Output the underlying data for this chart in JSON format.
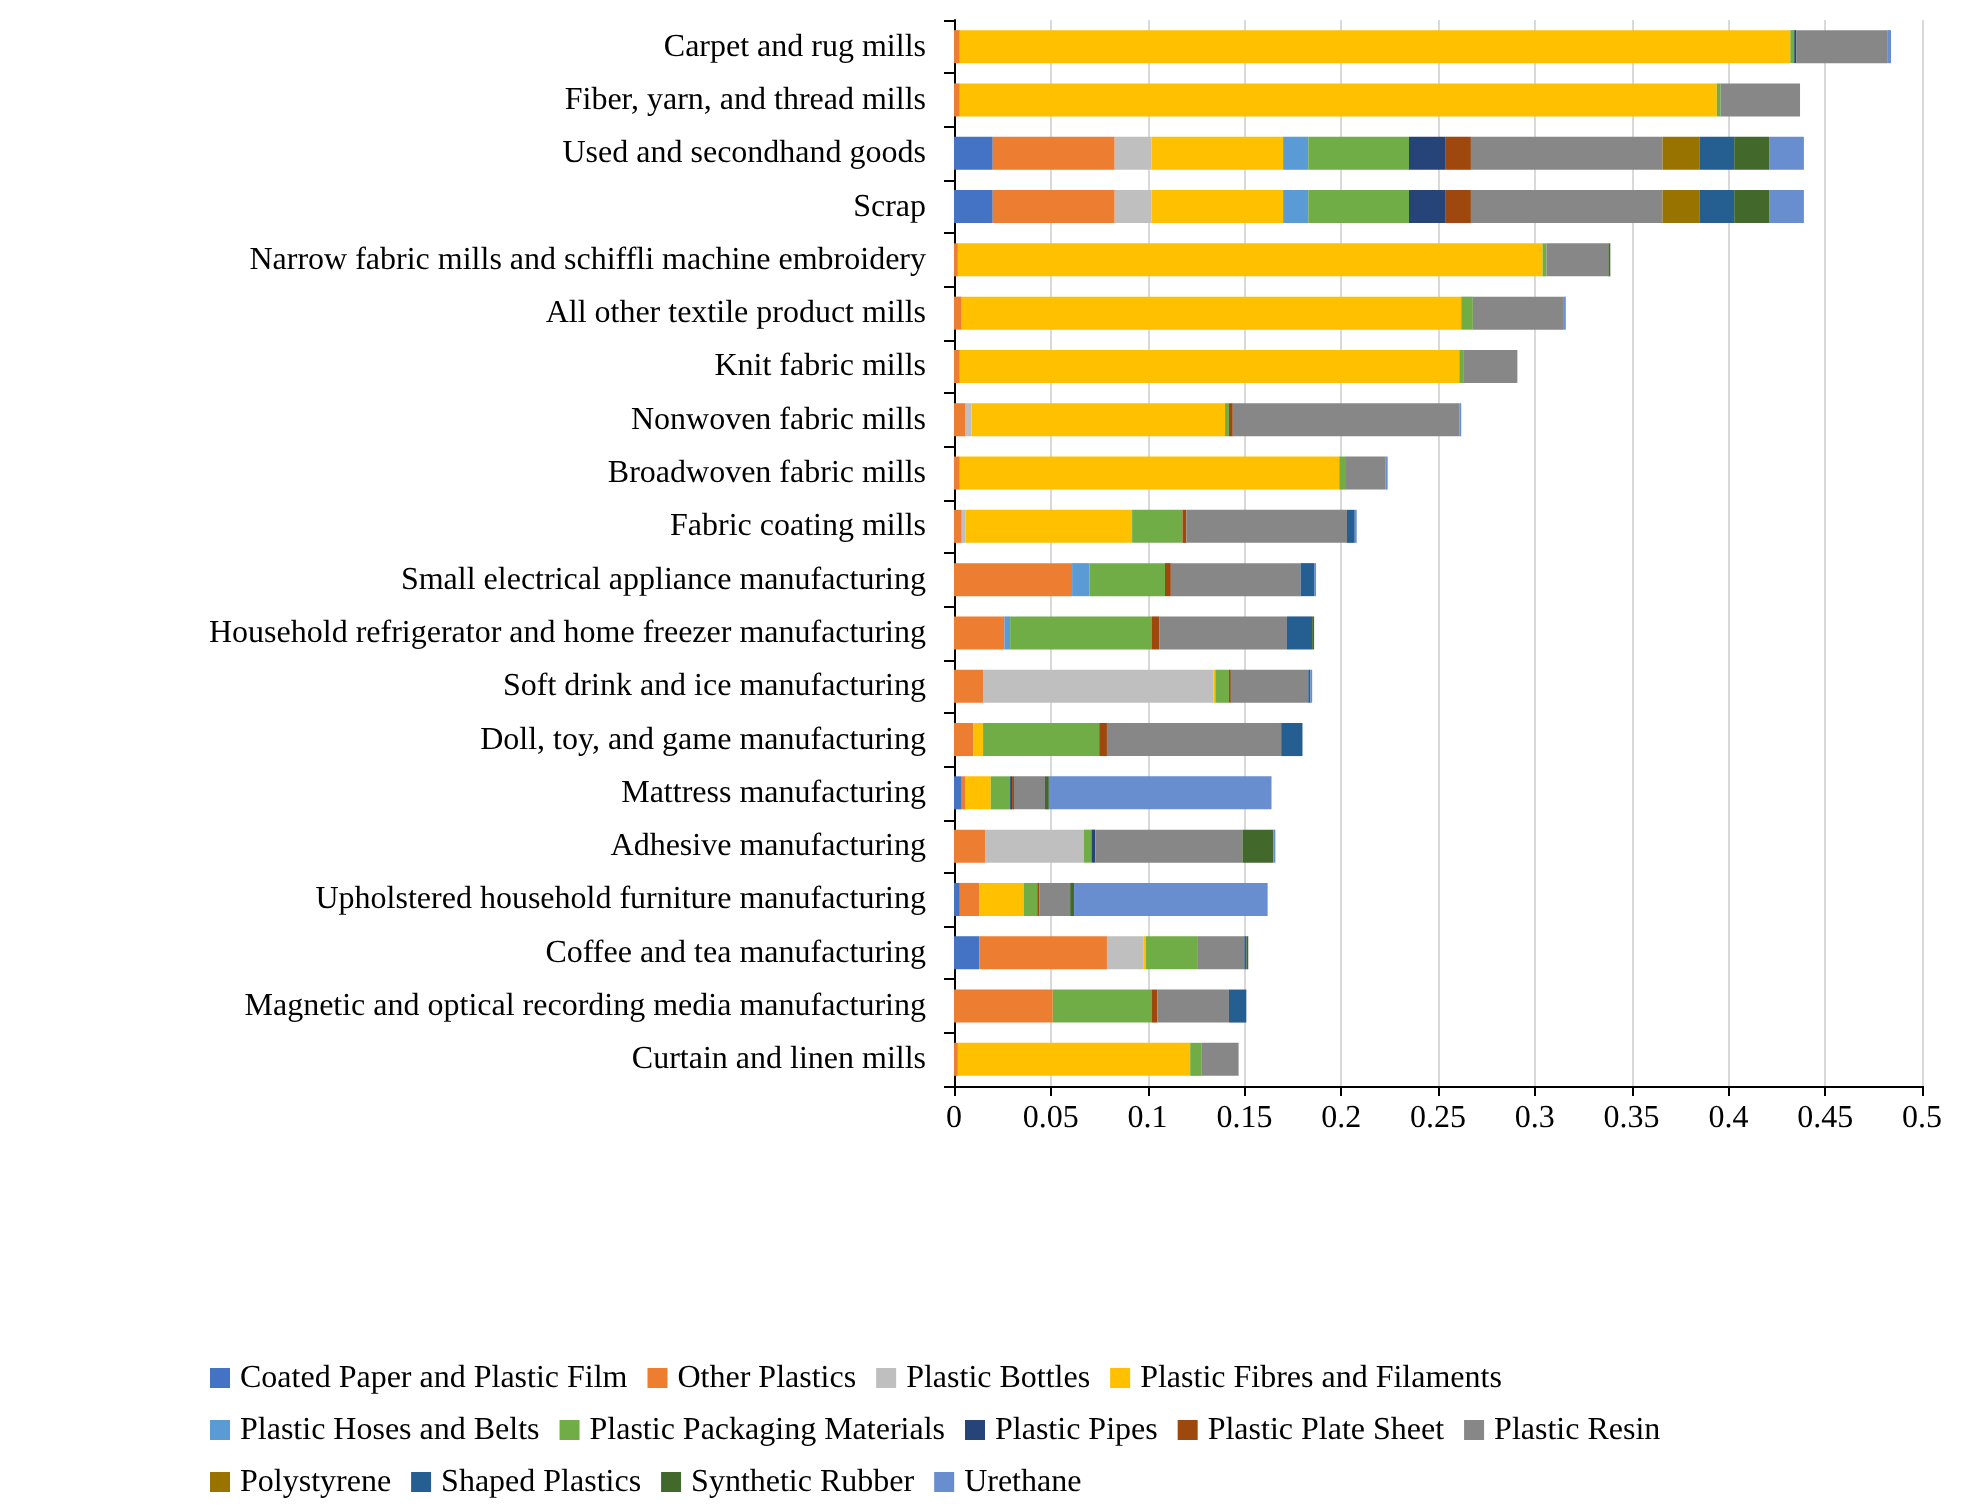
{
  "chart_data": {
    "type": "bar",
    "orientation": "horizontal",
    "stacked": true,
    "grid": "x",
    "legend": "bottom",
    "categories": [
      "Carpet and rug mills",
      "Fiber, yarn, and thread mills",
      "Used and secondhand goods",
      "Scrap",
      "Narrow fabric mills and schiffli machine embroidery",
      "All other textile product mills",
      "Knit fabric mills",
      "Nonwoven fabric mills",
      "Broadwoven fabric mills",
      "Fabric coating mills",
      "Small electrical appliance manufacturing",
      "Household refrigerator and home freezer manufacturing",
      "Soft drink and ice manufacturing",
      "Doll, toy, and game manufacturing",
      "Mattress manufacturing",
      "Adhesive manufacturing",
      "Upholstered household furniture manufacturing",
      "Coffee and tea manufacturing",
      "Magnetic and optical recording media manufacturing",
      "Curtain and linen mills"
    ],
    "xlim": [
      0,
      0.5
    ],
    "xticks": [
      0,
      0.05,
      0.1,
      0.15,
      0.2,
      0.25,
      0.3,
      0.35,
      0.4,
      0.45,
      0.5
    ],
    "series": [
      {
        "name": "Coated Paper and Plastic Film",
        "color": "#4472c4",
        "values": [
          null,
          null,
          0.02,
          0.02,
          null,
          null,
          null,
          null,
          null,
          null,
          null,
          null,
          null,
          null,
          0.004,
          null,
          0.003,
          0.013,
          null,
          null
        ]
      },
      {
        "name": "Other Plastics",
        "color": "#ed7d31",
        "values": [
          0.003,
          0.003,
          0.063,
          0.063,
          0.002,
          0.004,
          0.003,
          0.006,
          0.003,
          0.004,
          0.061,
          0.026,
          0.015,
          0.01,
          0.002,
          0.016,
          0.01,
          0.066,
          0.051,
          0.002
        ]
      },
      {
        "name": "Plastic Bottles",
        "color": "#bfbfbf",
        "values": [
          null,
          null,
          0.019,
          0.019,
          null,
          null,
          null,
          0.003,
          null,
          0.002,
          null,
          null,
          0.119,
          null,
          null,
          0.051,
          null,
          0.019,
          null,
          null
        ]
      },
      {
        "name": "Plastic Fibres and Filaments",
        "color": "#ffc000",
        "values": [
          0.429,
          0.391,
          0.068,
          0.068,
          0.302,
          0.258,
          0.258,
          0.131,
          0.196,
          0.086,
          null,
          null,
          0.001,
          0.005,
          0.013,
          null,
          0.023,
          0.001,
          null,
          0.12
        ]
      },
      {
        "name": "Plastic Hoses and Belts",
        "color": "#5b9bd5",
        "values": [
          null,
          null,
          0.013,
          0.013,
          null,
          null,
          null,
          null,
          null,
          null,
          0.009,
          0.003,
          null,
          null,
          null,
          null,
          null,
          null,
          null,
          null
        ]
      },
      {
        "name": "Plastic Packaging Materials",
        "color": "#70ad47",
        "values": [
          0.002,
          0.002,
          0.052,
          0.052,
          0.002,
          0.006,
          0.002,
          0.002,
          0.003,
          0.026,
          0.039,
          0.073,
          0.007,
          0.06,
          0.01,
          0.004,
          0.007,
          0.027,
          0.051,
          0.006
        ]
      },
      {
        "name": "Plastic Pipes",
        "color": "#264478",
        "values": [
          0.001,
          null,
          0.019,
          0.019,
          null,
          null,
          null,
          null,
          null,
          null,
          null,
          null,
          null,
          null,
          0.001,
          0.002,
          null,
          null,
          null,
          null
        ]
      },
      {
        "name": "Plastic Plate Sheet",
        "color": "#9e480e",
        "values": [
          null,
          null,
          0.013,
          0.013,
          null,
          null,
          null,
          0.002,
          null,
          0.002,
          0.003,
          0.004,
          0.001,
          0.004,
          0.001,
          null,
          0.001,
          null,
          0.003,
          null
        ]
      },
      {
        "name": "Plastic Resin",
        "color": "#878787",
        "values": [
          0.047,
          0.041,
          0.099,
          0.099,
          0.032,
          0.047,
          0.028,
          0.117,
          0.021,
          0.083,
          0.067,
          0.066,
          0.04,
          0.09,
          0.016,
          0.076,
          0.016,
          0.024,
          0.037,
          0.019
        ]
      },
      {
        "name": "Polystyrene",
        "color": "#997300",
        "values": [
          null,
          null,
          0.019,
          0.019,
          null,
          null,
          null,
          null,
          null,
          null,
          null,
          null,
          null,
          null,
          null,
          null,
          null,
          null,
          null,
          null
        ]
      },
      {
        "name": "Shaped Plastics",
        "color": "#255e91",
        "values": [
          null,
          null,
          0.018,
          0.018,
          null,
          null,
          null,
          null,
          null,
          0.004,
          0.007,
          0.013,
          0.001,
          0.011,
          null,
          null,
          null,
          0.001,
          0.009,
          null
        ]
      },
      {
        "name": "Synthetic Rubber",
        "color": "#43682b",
        "values": [
          null,
          null,
          0.018,
          0.018,
          0.001,
          null,
          null,
          null,
          null,
          null,
          null,
          0.001,
          null,
          null,
          0.002,
          0.016,
          0.002,
          0.001,
          null,
          null
        ]
      },
      {
        "name": "Urethane",
        "color": "#698ed0",
        "values": [
          0.002,
          null,
          0.018,
          0.018,
          null,
          0.001,
          null,
          0.001,
          0.001,
          0.001,
          0.001,
          null,
          0.001,
          null,
          0.115,
          0.001,
          0.1,
          null,
          null,
          null
        ]
      }
    ]
  }
}
